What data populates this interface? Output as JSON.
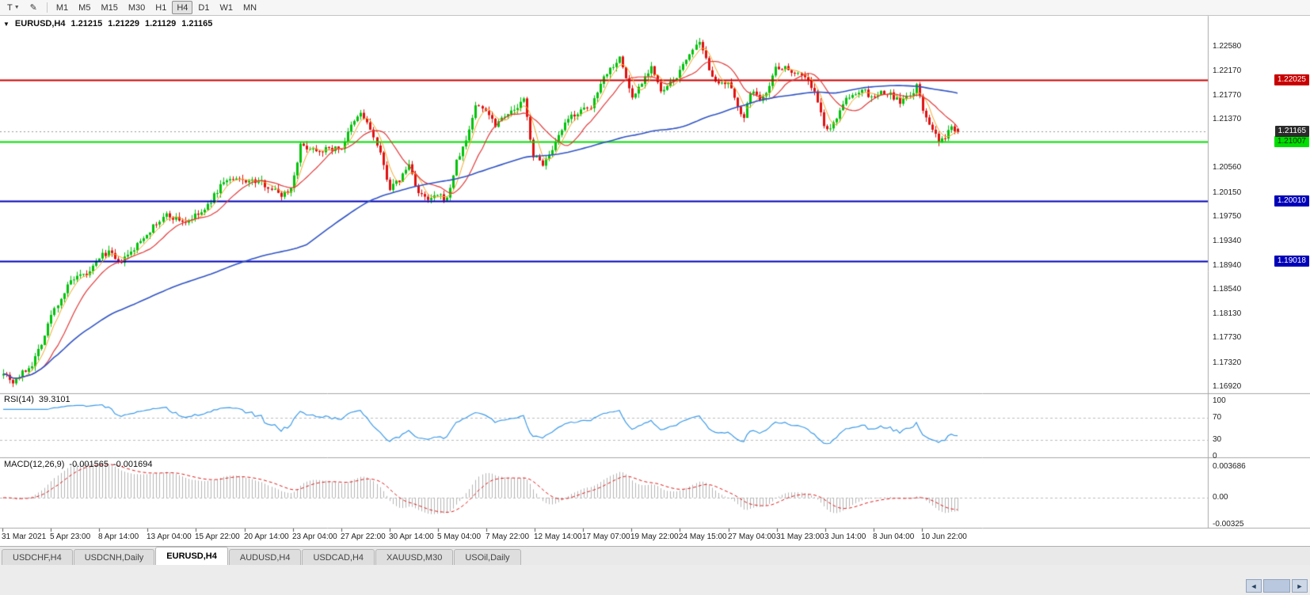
{
  "toolbar": {
    "tool_button": "T",
    "timeframes": [
      {
        "label": "M1",
        "active": false
      },
      {
        "label": "M5",
        "active": false
      },
      {
        "label": "M15",
        "active": false
      },
      {
        "label": "M30",
        "active": false
      },
      {
        "label": "H1",
        "active": false
      },
      {
        "label": "H4",
        "active": true
      },
      {
        "label": "D1",
        "active": false
      },
      {
        "label": "W1",
        "active": false
      },
      {
        "label": "MN",
        "active": false
      }
    ]
  },
  "icons": {
    "chevron_down": "▼",
    "pencil": "✎",
    "collapse": "▼",
    "scroll_left": "◄",
    "scroll_right": "►"
  },
  "chart": {
    "title": "EURUSD,H4",
    "ohlc": {
      "open": "1.21215",
      "high": "1.21229",
      "low": "1.21129",
      "close": "1.21165"
    },
    "price_axis_ticks": [
      "1.22580",
      "1.22170",
      "1.21770",
      "1.21370",
      "1.20560",
      "1.20150",
      "1.19750",
      "1.19340",
      "1.18940",
      "1.18540",
      "1.18130",
      "1.17730",
      "1.17320",
      "1.16920"
    ],
    "hlines": [
      {
        "label": "1.22025",
        "price": 1.22025,
        "color": "#c80000",
        "tag_bg": "#c80000",
        "tag_fg": "#ffffff"
      },
      {
        "label": "1.21007",
        "price": 1.21007,
        "color": "#00dd00",
        "tag_bg": "#00dd00",
        "tag_fg": "#002b00"
      },
      {
        "label": "1.20010",
        "price": 1.2001,
        "color": "#0000b8",
        "tag_bg": "#0000b8",
        "tag_fg": "#ffffff"
      },
      {
        "label": "1.19018",
        "price": 1.19018,
        "color": "#0000b8",
        "tag_bg": "#0000b8",
        "tag_fg": "#ffffff"
      }
    ],
    "current_price": {
      "label": "1.21165",
      "price": 1.21165,
      "tag_bg": "#2b2b2b",
      "tag_fg": "#ffffff"
    },
    "time_axis": [
      "31 Mar 2021",
      "5 Apr 23:00",
      "8 Apr 14:00",
      "13 Apr 04:00",
      "15 Apr 22:00",
      "20 Apr 14:00",
      "23 Apr 04:00",
      "27 Apr 22:00",
      "30 Apr 14:00",
      "5 May 04:00",
      "7 May 22:00",
      "12 May 14:00",
      "17 May 07:00",
      "19 May 22:00",
      "24 May 15:00",
      "27 May 04:00",
      "31 May 23:00",
      "3 Jun 14:00",
      "8 Jun 04:00",
      "10 Jun 22:00"
    ],
    "colors": {
      "up": "#00c20a",
      "down": "#e01010",
      "ma_fast": "#f5a623",
      "ma_mid": "#e23a3a",
      "ma_slow": "#3053c4",
      "rsi": "#3d9be9",
      "macd_bar": "#b5b5b5",
      "macd_signal": "#e02020",
      "grid": "#a8a8a8",
      "current_line": "#9a9a9a"
    }
  },
  "rsi": {
    "title": "RSI(14)",
    "value": "39.3101",
    "axis": [
      {
        "label": "100",
        "value": 100
      },
      {
        "label": "70",
        "value": 70
      },
      {
        "label": "30",
        "value": 30
      },
      {
        "label": "0",
        "value": 0
      }
    ],
    "levels": [
      70,
      30
    ]
  },
  "macd": {
    "title": "MACD(12,26,9)",
    "value_main": "-0.001565",
    "value_signal": "-0.001694",
    "axis": [
      {
        "label": "0.003686",
        "value": 0.003686
      },
      {
        "label": "0.00",
        "value": 0
      },
      {
        "label": "-0.00325",
        "value": -0.00325
      }
    ]
  },
  "tabs": [
    {
      "label": "USDCHF,H4",
      "active": false
    },
    {
      "label": "USDCNH,Daily",
      "active": false
    },
    {
      "label": "EURUSD,H4",
      "active": true
    },
    {
      "label": "AUDUSD,H4",
      "active": false
    },
    {
      "label": "USDCAD,H4",
      "active": false
    },
    {
      "label": "XAUUSD,M30",
      "active": false
    },
    {
      "label": "USOil,Daily",
      "active": false
    }
  ],
  "chart_data": {
    "type": "candlestick",
    "symbol": "EURUSD",
    "timeframe": "H4",
    "visible_price_range": [
      1.1682,
      1.2309
    ],
    "candle_count": 300,
    "last_candle": {
      "open": 1.21215,
      "high": 1.21229,
      "low": 1.21129,
      "close": 1.21165
    },
    "price_waypoints": [
      [
        0,
        1.1718
      ],
      [
        3,
        1.17
      ],
      [
        9,
        1.173
      ],
      [
        13,
        1.1778
      ],
      [
        15,
        1.1812
      ],
      [
        21,
        1.1868
      ],
      [
        27,
        1.1882
      ],
      [
        30,
        1.1908
      ],
      [
        33,
        1.1917
      ],
      [
        36,
        1.1897
      ],
      [
        40,
        1.1915
      ],
      [
        45,
        1.1948
      ],
      [
        51,
        1.1978
      ],
      [
        57,
        1.1966
      ],
      [
        60,
        1.1976
      ],
      [
        63,
        1.1985
      ],
      [
        69,
        1.2035
      ],
      [
        75,
        1.2036
      ],
      [
        81,
        1.2032
      ],
      [
        87,
        1.2012
      ],
      [
        90,
        1.2022
      ],
      [
        93,
        1.2093
      ],
      [
        99,
        1.2086
      ],
      [
        106,
        1.209
      ],
      [
        109,
        1.2125
      ],
      [
        112,
        1.2148
      ],
      [
        115,
        1.2121
      ],
      [
        118,
        1.2078
      ],
      [
        121,
        1.2022
      ],
      [
        124,
        1.2036
      ],
      [
        127,
        1.2062
      ],
      [
        130,
        1.2014
      ],
      [
        133,
        1.2002
      ],
      [
        136,
        1.201
      ],
      [
        139,
        1.2004
      ],
      [
        142,
        1.2066
      ],
      [
        145,
        1.2102
      ],
      [
        148,
        1.216
      ],
      [
        151,
        1.2154
      ],
      [
        154,
        1.2129
      ],
      [
        157,
        1.2146
      ],
      [
        160,
        1.2151
      ],
      [
        163,
        1.217
      ],
      [
        166,
        1.2076
      ],
      [
        169,
        1.2064
      ],
      [
        172,
        1.2082
      ],
      [
        175,
        1.212
      ],
      [
        178,
        1.2143
      ],
      [
        181,
        1.2151
      ],
      [
        184,
        1.2156
      ],
      [
        187,
        1.22
      ],
      [
        190,
        1.2222
      ],
      [
        193,
        1.224
      ],
      [
        197,
        1.2172
      ],
      [
        200,
        1.22
      ],
      [
        203,
        1.2226
      ],
      [
        206,
        1.2181
      ],
      [
        209,
        1.2196
      ],
      [
        212,
        1.2216
      ],
      [
        215,
        1.2248
      ],
      [
        218,
        1.2262
      ],
      [
        221,
        1.2222
      ],
      [
        224,
        1.2193
      ],
      [
        227,
        1.2196
      ],
      [
        230,
        1.2162
      ],
      [
        232,
        1.2136
      ],
      [
        234,
        1.2184
      ],
      [
        237,
        1.2172
      ],
      [
        240,
        1.2192
      ],
      [
        242,
        1.2225
      ],
      [
        245,
        1.2223
      ],
      [
        248,
        1.2216
      ],
      [
        251,
        1.2209
      ],
      [
        254,
        1.2182
      ],
      [
        257,
        1.2128
      ],
      [
        259,
        1.2118
      ],
      [
        261,
        1.2142
      ],
      [
        263,
        1.2165
      ],
      [
        266,
        1.2176
      ],
      [
        269,
        1.2188
      ],
      [
        272,
        1.2172
      ],
      [
        275,
        1.2181
      ],
      [
        278,
        1.2178
      ],
      [
        281,
        1.2166
      ],
      [
        284,
        1.2176
      ],
      [
        286,
        1.2192
      ],
      [
        288,
        1.2152
      ],
      [
        291,
        1.2121
      ],
      [
        293,
        1.2097
      ],
      [
        295,
        1.2107
      ],
      [
        297,
        1.2127
      ],
      [
        299,
        1.21165
      ]
    ],
    "moving_averages": [
      {
        "name": "fast",
        "period": 5,
        "color_key": "ma_fast"
      },
      {
        "name": "mid",
        "period": 13,
        "color_key": "ma_mid"
      },
      {
        "name": "slow",
        "period": 96,
        "color_key": "ma_slow"
      }
    ],
    "horizontal_levels": [
      1.22025,
      1.21007,
      1.2001,
      1.19018
    ],
    "current_close": 1.21165,
    "indicators": [
      {
        "type": "RSI",
        "period": 14,
        "current": 39.3101,
        "scale": [
          0,
          30,
          70,
          100
        ]
      },
      {
        "type": "MACD",
        "fast": 12,
        "slow": 26,
        "signal": 9,
        "current_main": -0.001565,
        "current_signal": -0.001694,
        "scale_top": 0.003686,
        "scale_bottom": -0.00325
      }
    ]
  }
}
